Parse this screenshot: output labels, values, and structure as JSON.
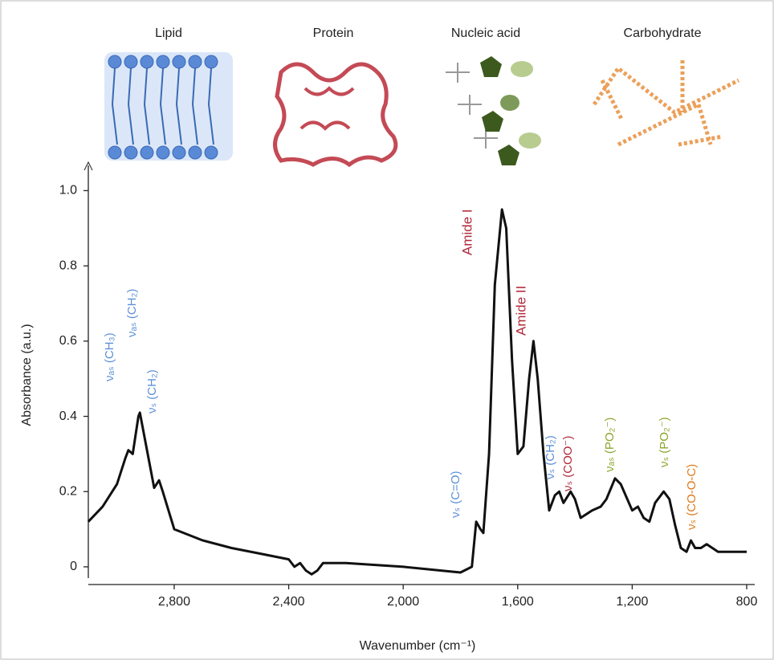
{
  "chart_data": {
    "type": "line",
    "panel_labels": [
      "Lipid",
      "Protein",
      "Nucleic acid",
      "Carbohydrate"
    ],
    "xlabel": "Wavenumber (cm⁻¹)",
    "ylabel": "Absorbance (a.u.)",
    "x": [
      3100,
      3050,
      3000,
      2970,
      2960,
      2945,
      2925,
      2920,
      2900,
      2870,
      2853,
      2840,
      2800,
      2700,
      2600,
      2500,
      2400,
      2380,
      2360,
      2340,
      2320,
      2300,
      2280,
      2200,
      2000,
      1800,
      1760,
      1745,
      1730,
      1720,
      1700,
      1680,
      1655,
      1640,
      1620,
      1600,
      1580,
      1560,
      1545,
      1530,
      1510,
      1490,
      1470,
      1455,
      1440,
      1415,
      1400,
      1380,
      1340,
      1310,
      1290,
      1260,
      1240,
      1200,
      1180,
      1160,
      1140,
      1120,
      1090,
      1070,
      1050,
      1030,
      1010,
      995,
      980,
      960,
      940,
      920,
      900,
      800
    ],
    "values": [
      0.12,
      0.16,
      0.22,
      0.29,
      0.31,
      0.3,
      0.4,
      0.41,
      0.33,
      0.21,
      0.23,
      0.2,
      0.1,
      0.07,
      0.05,
      0.035,
      0.02,
      0.0,
      0.01,
      -0.01,
      -0.02,
      -0.01,
      0.01,
      0.01,
      0.0,
      -0.015,
      0.0,
      0.12,
      0.1,
      0.09,
      0.3,
      0.75,
      0.95,
      0.9,
      0.55,
      0.3,
      0.32,
      0.5,
      0.6,
      0.5,
      0.3,
      0.15,
      0.19,
      0.2,
      0.17,
      0.2,
      0.18,
      0.13,
      0.15,
      0.16,
      0.18,
      0.235,
      0.22,
      0.15,
      0.16,
      0.13,
      0.12,
      0.17,
      0.2,
      0.18,
      0.11,
      0.05,
      0.04,
      0.07,
      0.05,
      0.05,
      0.06,
      0.05,
      0.04,
      0.04
    ],
    "color": "#111111",
    "xlim": [
      3100,
      800
    ],
    "ylim": [
      -0.03,
      1.05
    ],
    "xticks": [
      {
        "value": 2800,
        "label": "2,800"
      },
      {
        "value": 2400,
        "label": "2,400"
      },
      {
        "value": 2000,
        "label": "2,000"
      },
      {
        "value": 1600,
        "label": "1,600"
      },
      {
        "value": 1200,
        "label": "1,200"
      },
      800
    ],
    "yticks": [
      0,
      0.2,
      0.4,
      0.6,
      0.8,
      {
        "value": 1.0,
        "label": "1.0"
      }
    ],
    "annotations": [
      {
        "text": "νₐₛ (CH₃)",
        "color": "#5b8fd6"
      },
      {
        "text": "νₐₛ (CH₂)",
        "color": "#5b8fd6"
      },
      {
        "text": "νₛ (CH₂)",
        "color": "#5b8fd6"
      },
      {
        "text": "νₛ (C=O)",
        "color": "#5b8fd6"
      },
      {
        "text": "Amide I",
        "color": "#b02a3a"
      },
      {
        "text": "Amide II",
        "color": "#b02a3a"
      },
      {
        "text": "νₛ (CH₂)",
        "color": "#5b8fd6"
      },
      {
        "text": "νₛ (COO⁻)",
        "color": "#b02a3a"
      },
      {
        "text": "νₐₛ (PO₂⁻)",
        "color": "#8aa52a"
      },
      {
        "text": "νₛ (PO₂⁻)",
        "color": "#8aa52a"
      },
      {
        "text": "νₛ (CO-O-C)",
        "color": "#e07a1a"
      }
    ]
  }
}
